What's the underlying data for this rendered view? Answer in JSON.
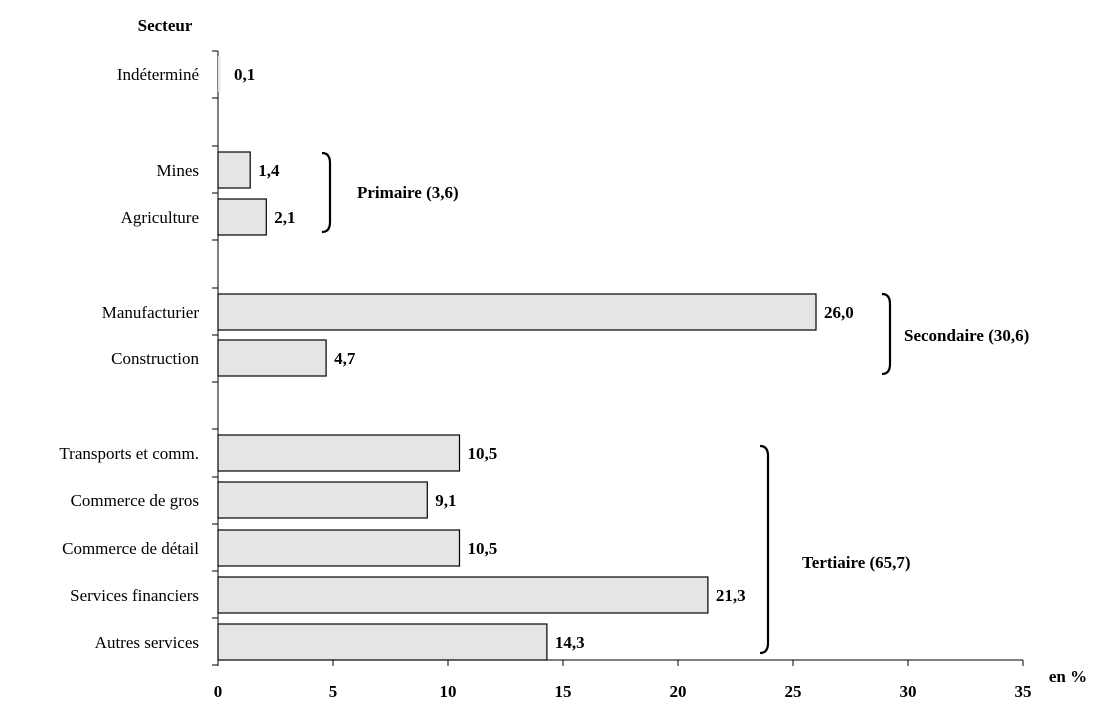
{
  "chart_data": {
    "type": "bar",
    "orientation": "horizontal",
    "ylabel": "Secteur",
    "xlabel": "en %",
    "xlim": [
      0,
      35
    ],
    "xticks": [
      "0",
      "5",
      "10",
      "15",
      "20",
      "25",
      "30",
      "35"
    ],
    "grid": false,
    "categories": [
      "Indéterminé",
      "Mines",
      "Agriculture",
      "Manufacturier",
      "Construction",
      "Transports et comm.",
      "Commerce de gros",
      "Commerce de détail",
      "Services financiers",
      "Autres services"
    ],
    "values": [
      0.1,
      1.4,
      2.1,
      26.0,
      4.7,
      10.5,
      9.1,
      10.5,
      21.3,
      14.3
    ],
    "value_labels": [
      "0,1",
      "1,4",
      "2,1",
      "26,0",
      "4,7",
      "10,5",
      "9,1",
      "10,5",
      "21,3",
      "14,3"
    ],
    "groups": [
      {
        "label": "Primaire (3,6)",
        "members": [
          "Mines",
          "Agriculture"
        ]
      },
      {
        "label": "Secondaire (30,6)",
        "members": [
          "Manufacturier",
          "Construction"
        ]
      },
      {
        "label": "Tertiaire (65,7)",
        "members": [
          "Transports et comm.",
          "Commerce de gros",
          "Commerce de détail",
          "Services financiers",
          "Autres services"
        ]
      }
    ],
    "bar_color": "#e5e5e5",
    "edge_color": "#000000"
  }
}
